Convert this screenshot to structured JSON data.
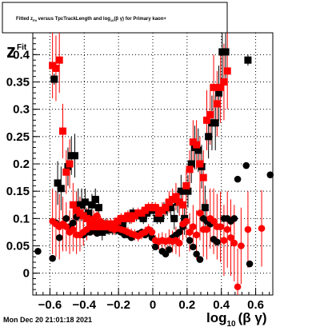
{
  "chart_data": {
    "type": "scatter",
    "title": "Fitted  z<sub>Fit</sub>  versus TpcTrackLength and log<sub>10</sub>(βγ) for Primary kaon+",
    "title_parts": {
      "a": "Fitted  z",
      "a_sub": "Fit",
      "b": "  versus  TpcTrackLength and log",
      "b_sub": "10",
      "c": "(β γ) for Primary kaon+"
    },
    "ylabel_main": "z",
    "ylabel_sub": "Fit",
    "xlabel_main": "log",
    "xlabel_sub": "10",
    "xlabel_rest": "(β γ)",
    "date_stamp": "Mon Dec 20 21:01:18 2021",
    "xlim": [
      -0.7,
      0.7
    ],
    "ylim": [
      -0.04,
      0.44
    ],
    "x_ticks": [
      -0.6,
      -0.4,
      -0.2,
      0,
      0.2,
      0.4,
      0.6
    ],
    "x_tick_labels": [
      "−0.6",
      "−0.4",
      "−0.2",
      "0",
      "0.2",
      "0.4",
      "0.6"
    ],
    "y_ticks": [
      0,
      0.05,
      0.1,
      0.15,
      0.2,
      0.25,
      0.3,
      0.35,
      0.4
    ],
    "y_tick_labels": [
      "0",
      "0.05",
      "0.1",
      "0.15",
      "0.2",
      "0.25",
      "0.3",
      "0.35",
      "0.4"
    ],
    "grid": true,
    "series": [
      {
        "color": "#000000",
        "marker": "square",
        "points": [
          [
            -0.575,
            0.355,
            0.01
          ],
          [
            -0.555,
            0.165,
            0.04
          ],
          [
            -0.535,
            0.155,
            0.04
          ],
          [
            -0.495,
            0.195,
            0.035
          ],
          [
            -0.475,
            0.215,
            0.035
          ],
          [
            -0.455,
            0.215,
            0.04
          ],
          [
            -0.435,
            0.125,
            0.03
          ],
          [
            -0.415,
            0.125,
            0.03
          ],
          [
            -0.395,
            0.13,
            0.025
          ],
          [
            -0.375,
            0.11,
            0.02
          ],
          [
            -0.355,
            0.125,
            0.02
          ],
          [
            -0.335,
            0.135,
            0.02
          ],
          [
            -0.315,
            0.12,
            0.02
          ],
          [
            -0.295,
            0.075,
            0.015
          ],
          [
            -0.275,
            0.09,
            0.01
          ],
          [
            -0.255,
            0.08,
            0.01
          ],
          [
            -0.235,
            0.08,
            0.01
          ],
          [
            -0.215,
            0.08,
            0.01
          ],
          [
            -0.195,
            0.085,
            0.01
          ],
          [
            -0.175,
            0.09,
            0.01
          ],
          [
            -0.155,
            0.1,
            0.01
          ],
          [
            -0.135,
            0.1,
            0.01
          ],
          [
            -0.115,
            0.11,
            0.01
          ],
          [
            -0.095,
            0.105,
            0.01
          ],
          [
            -0.075,
            0.105,
            0.01
          ],
          [
            -0.055,
            0.1,
            0.01
          ],
          [
            -0.035,
            0.11,
            0.01
          ],
          [
            -0.015,
            0.115,
            0.01
          ],
          [
            0.005,
            0.115,
            0.01
          ],
          [
            0.025,
            0.1,
            0.01
          ],
          [
            0.045,
            0.1,
            0.01
          ],
          [
            0.065,
            0.115,
            0.015
          ],
          [
            0.085,
            0.12,
            0.015
          ],
          [
            0.105,
            0.12,
            0.02
          ],
          [
            0.125,
            0.1,
            0.02
          ],
          [
            0.145,
            0.13,
            0.02
          ],
          [
            0.165,
            0.15,
            0.03
          ],
          [
            0.185,
            0.1,
            0.03
          ],
          [
            0.205,
            0.15,
            0.03
          ],
          [
            0.225,
            0.2,
            0.035
          ],
          [
            0.245,
            0.23,
            0.04
          ],
          [
            0.265,
            0.225,
            0.04
          ],
          [
            0.285,
            0.195,
            0.04
          ],
          [
            0.305,
            0.12,
            0.04
          ],
          [
            0.325,
            0.25,
            0.04
          ],
          [
            0.345,
            0.275,
            0.05
          ],
          [
            0.365,
            0.275,
            0.05
          ],
          [
            0.385,
            0.33,
            0.05
          ],
          [
            0.405,
            0.405,
            0.05
          ],
          [
            0.425,
            0.405,
            0.06
          ],
          [
            0.555,
            0.39,
            0.01
          ]
        ]
      },
      {
        "color": "#000000",
        "marker": "circle",
        "points": [
          [
            -0.67,
            0.04,
            0.0
          ],
          [
            -0.585,
            0.027,
            0.0
          ],
          [
            -0.565,
            0.092,
            0.0
          ],
          [
            -0.545,
            0.065,
            0.0
          ],
          [
            -0.505,
            0.1,
            0.0
          ],
          [
            -0.485,
            0.085,
            0.0
          ],
          [
            -0.465,
            0.092,
            0.0
          ],
          [
            -0.445,
            0.103,
            0.0
          ],
          [
            -0.425,
            0.11,
            0.0
          ],
          [
            -0.405,
            0.07,
            0.0
          ],
          [
            -0.385,
            0.075,
            0.0
          ],
          [
            -0.365,
            0.075,
            0.0
          ],
          [
            -0.345,
            0.078,
            0.0
          ],
          [
            -0.325,
            0.073,
            0.0
          ],
          [
            -0.305,
            0.078,
            0.0
          ],
          [
            -0.285,
            0.08,
            0.0
          ],
          [
            -0.265,
            0.078,
            0.0
          ],
          [
            -0.245,
            0.08,
            0.0
          ],
          [
            -0.225,
            0.08,
            0.0
          ],
          [
            -0.205,
            0.078,
            0.0
          ],
          [
            -0.185,
            0.075,
            0.0
          ],
          [
            -0.165,
            0.07,
            0.0
          ],
          [
            -0.145,
            0.07,
            0.0
          ],
          [
            -0.125,
            0.065,
            0.0
          ],
          [
            -0.105,
            0.07,
            0.0
          ],
          [
            -0.085,
            0.072,
            0.0
          ],
          [
            -0.065,
            0.075,
            0.0
          ],
          [
            -0.045,
            0.07,
            0.0
          ],
          [
            -0.025,
            0.073,
            0.0
          ],
          [
            -0.005,
            0.065,
            0.0
          ],
          [
            0.015,
            0.048,
            0.0
          ],
          [
            0.035,
            0.058,
            0.0
          ],
          [
            0.055,
            0.04,
            0.0
          ],
          [
            0.075,
            0.035,
            0.0
          ],
          [
            0.095,
            0.043,
            0.0
          ],
          [
            0.115,
            0.065,
            0.0
          ],
          [
            0.135,
            0.07,
            0.0
          ],
          [
            0.155,
            0.075,
            0.0
          ],
          [
            0.175,
            0.085,
            0.0
          ],
          [
            0.195,
            0.095,
            0.0
          ],
          [
            0.215,
            0.06,
            0.0
          ],
          [
            0.235,
            0.048,
            0.0
          ],
          [
            0.255,
            0.035,
            0.0
          ],
          [
            0.275,
            0.025,
            0.0
          ],
          [
            0.295,
            0.1,
            0.0
          ],
          [
            0.315,
            0.095,
            0.0
          ],
          [
            0.335,
            0.09,
            0.0
          ],
          [
            0.355,
            0.062,
            0.0
          ],
          [
            0.375,
            0.057,
            0.0
          ],
          [
            0.395,
            0.085,
            0.0
          ],
          [
            0.415,
            0.1,
            0.0
          ],
          [
            0.435,
            0.1,
            0.0
          ],
          [
            0.455,
            0.095,
            0.0
          ],
          [
            0.475,
            0.1,
            0.0
          ],
          [
            0.495,
            0.172,
            0.0
          ],
          [
            0.545,
            0.197,
            0.0
          ],
          [
            0.565,
            0.017,
            0.0
          ],
          [
            0.685,
            0.18,
            0.0
          ]
        ]
      },
      {
        "color": "#ff0000",
        "marker": "square",
        "points": [
          [
            -0.585,
            0.38,
            0.06
          ],
          [
            -0.565,
            0.375,
            0.06
          ],
          [
            -0.545,
            0.39,
            0.06
          ],
          [
            -0.525,
            0.26,
            0.05
          ],
          [
            -0.505,
            0.185,
            0.04
          ],
          [
            -0.485,
            0.2,
            0.045
          ],
          [
            -0.465,
            0.125,
            0.04
          ],
          [
            -0.445,
            0.115,
            0.035
          ],
          [
            -0.425,
            0.11,
            0.03
          ],
          [
            -0.405,
            0.105,
            0.025
          ],
          [
            -0.385,
            0.1,
            0.02
          ],
          [
            -0.365,
            0.09,
            0.015
          ],
          [
            -0.345,
            0.085,
            0.015
          ],
          [
            -0.325,
            0.09,
            0.015
          ],
          [
            -0.305,
            0.085,
            0.01
          ],
          [
            -0.285,
            0.085,
            0.01
          ],
          [
            -0.265,
            0.09,
            0.01
          ],
          [
            -0.245,
            0.09,
            0.01
          ],
          [
            -0.225,
            0.09,
            0.01
          ],
          [
            -0.205,
            0.095,
            0.01
          ],
          [
            -0.185,
            0.1,
            0.01
          ],
          [
            -0.165,
            0.1,
            0.01
          ],
          [
            -0.145,
            0.105,
            0.01
          ],
          [
            -0.125,
            0.1,
            0.01
          ],
          [
            -0.105,
            0.105,
            0.01
          ],
          [
            -0.085,
            0.11,
            0.01
          ],
          [
            -0.065,
            0.11,
            0.01
          ],
          [
            -0.045,
            0.115,
            0.01
          ],
          [
            -0.025,
            0.12,
            0.01
          ],
          [
            -0.005,
            0.12,
            0.01
          ],
          [
            0.015,
            0.12,
            0.01
          ],
          [
            0.035,
            0.11,
            0.015
          ],
          [
            0.055,
            0.115,
            0.015
          ],
          [
            0.075,
            0.12,
            0.015
          ],
          [
            0.095,
            0.13,
            0.02
          ],
          [
            0.115,
            0.135,
            0.02
          ],
          [
            0.135,
            0.14,
            0.025
          ],
          [
            0.155,
            0.13,
            0.025
          ],
          [
            0.175,
            0.125,
            0.03
          ],
          [
            0.195,
            0.16,
            0.03
          ],
          [
            0.215,
            0.19,
            0.035
          ],
          [
            0.235,
            0.24,
            0.04
          ],
          [
            0.255,
            0.235,
            0.045
          ],
          [
            0.275,
            0.2,
            0.05
          ],
          [
            0.295,
            0.175,
            0.05
          ],
          [
            0.315,
            0.28,
            0.055
          ],
          [
            0.335,
            0.29,
            0.055
          ],
          [
            0.355,
            0.34,
            0.06
          ],
          [
            0.375,
            0.31,
            0.06
          ],
          [
            0.395,
            0.34,
            0.065
          ],
          [
            0.415,
            0.35,
            0.07
          ],
          [
            0.435,
            0.37,
            0.07
          ]
        ]
      },
      {
        "color": "#ff0000",
        "marker": "circle",
        "points": [
          [
            -0.585,
            0.095,
            0.06
          ],
          [
            -0.565,
            0.09,
            0.06
          ],
          [
            -0.545,
            0.085,
            0.06
          ],
          [
            -0.525,
            0.09,
            0.05
          ],
          [
            -0.505,
            0.085,
            0.045
          ],
          [
            -0.485,
            0.075,
            0.04
          ],
          [
            -0.465,
            0.08,
            0.04
          ],
          [
            -0.445,
            0.07,
            0.035
          ],
          [
            -0.425,
            0.07,
            0.03
          ],
          [
            -0.405,
            0.075,
            0.025
          ],
          [
            -0.385,
            0.08,
            0.02
          ],
          [
            -0.365,
            0.085,
            0.015
          ],
          [
            -0.345,
            0.1,
            0.015
          ],
          [
            -0.325,
            0.105,
            0.015
          ],
          [
            -0.305,
            0.095,
            0.01
          ],
          [
            -0.285,
            0.088,
            0.01
          ],
          [
            -0.265,
            0.085,
            0.01
          ],
          [
            -0.245,
            0.082,
            0.01
          ],
          [
            -0.225,
            0.08,
            0.01
          ],
          [
            -0.205,
            0.082,
            0.01
          ],
          [
            -0.185,
            0.08,
            0.01
          ],
          [
            -0.165,
            0.078,
            0.01
          ],
          [
            -0.145,
            0.075,
            0.01
          ],
          [
            -0.125,
            0.072,
            0.01
          ],
          [
            -0.105,
            0.07,
            0.01
          ],
          [
            -0.085,
            0.068,
            0.01
          ],
          [
            -0.065,
            0.072,
            0.01
          ],
          [
            -0.045,
            0.075,
            0.01
          ],
          [
            -0.025,
            0.08,
            0.01
          ],
          [
            -0.005,
            0.075,
            0.01
          ],
          [
            0.015,
            0.06,
            0.01
          ],
          [
            0.035,
            0.058,
            0.015
          ],
          [
            0.055,
            0.06,
            0.015
          ],
          [
            0.075,
            0.058,
            0.015
          ],
          [
            0.095,
            0.06,
            0.02
          ],
          [
            0.115,
            0.058,
            0.02
          ],
          [
            0.135,
            0.06,
            0.025
          ],
          [
            0.155,
            0.055,
            0.025
          ],
          [
            0.175,
            0.09,
            0.03
          ],
          [
            0.195,
            0.095,
            0.03
          ],
          [
            0.215,
            0.075,
            0.035
          ],
          [
            0.235,
            0.085,
            0.04
          ],
          [
            0.255,
            0.07,
            0.045
          ],
          [
            0.275,
            0.11,
            0.05
          ],
          [
            0.295,
            0.08,
            0.05
          ],
          [
            0.315,
            0.08,
            0.055
          ],
          [
            0.335,
            0.1,
            0.055
          ],
          [
            0.355,
            0.095,
            0.06
          ],
          [
            0.375,
            0.085,
            0.06
          ],
          [
            0.395,
            0.085,
            0.065
          ],
          [
            0.415,
            0.06,
            0.065
          ],
          [
            0.435,
            0.08,
            0.07
          ],
          [
            0.455,
            0.065,
            0.07
          ],
          [
            0.475,
            0.055,
            0.07
          ],
          [
            0.495,
            -0.025,
            0.07
          ],
          [
            0.515,
            0.05,
            0.07
          ],
          [
            0.555,
            0.08,
            0.07
          ],
          [
            0.635,
            0.082,
            0.07
          ]
        ]
      }
    ]
  }
}
